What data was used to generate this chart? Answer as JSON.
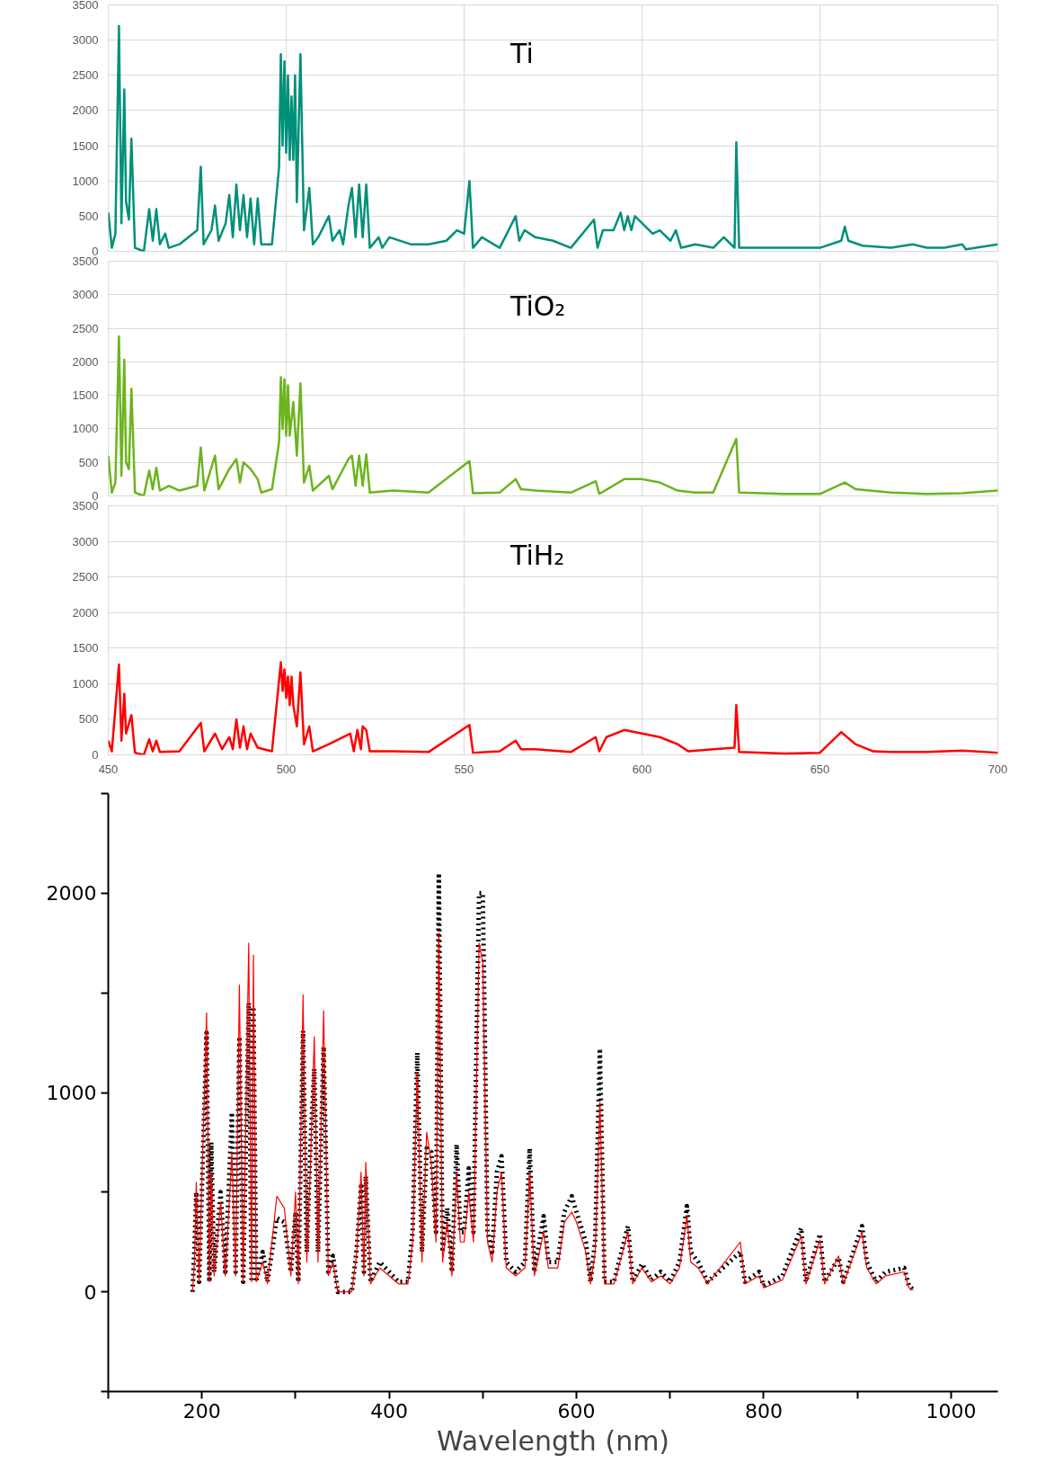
{
  "chart_data": [
    {
      "type": "line",
      "title": "Ti",
      "xlim": [
        450,
        700
      ],
      "xticks": [
        450,
        500,
        550,
        600,
        650,
        700
      ],
      "ylim": [
        0,
        3500
      ],
      "yticks": [
        0,
        500,
        1000,
        1500,
        2000,
        2500,
        3000,
        3500
      ],
      "grid": true,
      "tick_labels": "y",
      "line_style": "solid",
      "series": [
        {
          "color": "#00907a",
          "x": [
            450,
            451,
            452,
            453,
            453.7,
            454.5,
            455,
            455.8,
            456.5,
            457.5,
            460,
            461.5,
            462.5,
            463.5,
            464.5,
            466,
            467,
            470,
            475,
            476,
            476.8,
            479,
            480,
            481,
            483,
            484,
            485,
            486,
            487,
            488,
            489,
            490,
            491,
            492,
            493,
            496,
            498,
            498.5,
            499,
            499.5,
            500,
            500.5,
            501,
            501.5,
            502,
            502.5,
            503,
            504,
            505,
            506.5,
            507.5,
            509,
            512,
            513,
            515,
            516,
            517.5,
            518.5,
            519.5,
            520.5,
            521.5,
            522.5,
            523.5,
            526,
            527,
            529,
            535,
            540,
            545,
            548,
            550,
            551.5,
            552.5,
            555,
            560,
            564.5,
            565.5,
            567,
            570,
            575,
            580,
            586.5,
            587.5,
            589,
            592,
            594,
            595,
            596,
            597,
            598,
            600,
            603,
            605,
            608,
            609.5,
            611,
            615,
            620,
            623,
            624,
            626,
            626.5,
            627.3,
            630,
            640,
            650,
            656,
            657,
            658,
            662,
            670,
            676,
            680,
            685,
            690,
            691,
            700
          ],
          "values": [
            550,
            50,
            250,
            3200,
            400,
            2300,
            700,
            450,
            1600,
            50,
            0,
            600,
            150,
            600,
            100,
            250,
            50,
            100,
            300,
            1200,
            100,
            300,
            650,
            150,
            400,
            800,
            200,
            950,
            300,
            800,
            200,
            750,
            100,
            750,
            100,
            100,
            1200,
            2800,
            1500,
            2700,
            1400,
            2500,
            1300,
            2200,
            1300,
            2500,
            700,
            2800,
            300,
            900,
            100,
            200,
            500,
            150,
            300,
            100,
            650,
            900,
            200,
            950,
            200,
            950,
            50,
            200,
            50,
            200,
            100,
            100,
            150,
            300,
            250,
            1000,
            50,
            200,
            50,
            500,
            150,
            300,
            200,
            150,
            50,
            450,
            50,
            300,
            300,
            550,
            300,
            500,
            300,
            500,
            400,
            250,
            300,
            150,
            300,
            50,
            100,
            50,
            200,
            150,
            50,
            1550,
            50,
            50,
            50,
            50,
            150,
            350,
            150,
            80,
            50,
            100,
            50,
            50,
            100,
            30,
            100
          ]
        }
      ]
    },
    {
      "type": "line",
      "title": "TiO₂",
      "xlim": [
        450,
        700
      ],
      "xticks": [
        450,
        500,
        550,
        600,
        650,
        700
      ],
      "ylim": [
        0,
        3500
      ],
      "yticks": [
        0,
        500,
        1000,
        1500,
        2000,
        2500,
        3000,
        3500
      ],
      "grid": true,
      "tick_labels": "y",
      "line_style": "solid",
      "series": [
        {
          "color": "#6cb41e",
          "x": [
            450,
            451,
            452,
            453,
            453.7,
            454.5,
            455,
            455.8,
            456.5,
            457.5,
            460,
            461.5,
            462.5,
            463.5,
            464.5,
            467,
            470,
            475,
            476,
            477,
            480,
            481,
            484,
            486,
            487,
            488,
            490,
            492,
            493,
            496,
            498,
            498.5,
            499,
            499.5,
            500,
            500.5,
            501,
            502,
            503,
            504,
            505,
            506.5,
            507.5,
            512,
            513,
            517.5,
            518.5,
            519.5,
            520.5,
            521.5,
            522.5,
            523.5,
            530,
            540,
            551.5,
            552.5,
            560,
            564.5,
            566,
            570,
            580,
            587,
            588,
            595,
            600,
            605,
            610,
            615,
            620,
            626.5,
            627.3,
            640,
            650,
            657,
            660,
            670,
            680,
            690,
            700
          ],
          "values": [
            600,
            50,
            200,
            2380,
            300,
            2030,
            500,
            400,
            1600,
            50,
            0,
            380,
            100,
            420,
            80,
            150,
            80,
            150,
            720,
            80,
            600,
            100,
            400,
            550,
            200,
            500,
            400,
            250,
            50,
            100,
            800,
            1770,
            1000,
            1740,
            900,
            1650,
            900,
            1400,
            600,
            1680,
            200,
            450,
            80,
            300,
            100,
            550,
            600,
            150,
            600,
            150,
            620,
            50,
            80,
            50,
            520,
            40,
            50,
            250,
            100,
            80,
            50,
            220,
            30,
            250,
            250,
            200,
            80,
            50,
            50,
            850,
            50,
            30,
            30,
            200,
            100,
            50,
            30,
            40,
            80
          ]
        }
      ]
    },
    {
      "type": "line",
      "title": "TiH₂",
      "xlim": [
        450,
        700
      ],
      "xticks": [
        450,
        500,
        550,
        600,
        650,
        700
      ],
      "ylim": [
        0,
        3500
      ],
      "yticks": [
        0,
        500,
        1000,
        1500,
        2000,
        2500,
        3000,
        3500
      ],
      "grid": true,
      "line_style": "solid",
      "series": [
        {
          "color": "#ff0000",
          "x": [
            450,
            451,
            453,
            453.7,
            454.5,
            455,
            456.5,
            457.5,
            460,
            461.5,
            462.5,
            463.5,
            464.5,
            470,
            476,
            477,
            480,
            482,
            484,
            485,
            486,
            487,
            488,
            489,
            490,
            492,
            496,
            498.5,
            499,
            499.5,
            500,
            500.5,
            501,
            501.5,
            502,
            503,
            504,
            505,
            506.5,
            507.5,
            512,
            518,
            519,
            520,
            521,
            521.5,
            522.5,
            523.5,
            530,
            540,
            551.5,
            552.5,
            560,
            564.5,
            566,
            570,
            580,
            587,
            588,
            590,
            595,
            600,
            605,
            610,
            613,
            620,
            626,
            626.5,
            627.3,
            640,
            650,
            656,
            660,
            665,
            670,
            680,
            690,
            700
          ],
          "values": [
            200,
            50,
            1270,
            200,
            860,
            300,
            560,
            30,
            0,
            220,
            50,
            200,
            40,
            50,
            450,
            50,
            300,
            80,
            250,
            80,
            500,
            100,
            400,
            80,
            300,
            100,
            50,
            1300,
            900,
            1200,
            800,
            1100,
            700,
            1100,
            700,
            400,
            1160,
            150,
            400,
            50,
            150,
            300,
            50,
            350,
            80,
            400,
            350,
            50,
            50,
            40,
            420,
            30,
            50,
            200,
            80,
            80,
            40,
            250,
            50,
            250,
            350,
            300,
            250,
            150,
            50,
            80,
            100,
            700,
            40,
            20,
            30,
            320,
            150,
            50,
            40,
            40,
            60,
            30
          ]
        }
      ]
    },
    {
      "type": "line",
      "xlabel": "Wavelength (nm)",
      "xlim": [
        100,
        1050
      ],
      "xticks": [
        {
          "value": 100,
          "label": null
        },
        200,
        {
          "value": 300,
          "label": null
        },
        400,
        {
          "value": 500,
          "label": null
        },
        600,
        {
          "value": 700,
          "label": null
        },
        800,
        {
          "value": 900,
          "label": null
        },
        1000
      ],
      "ylim": [
        -500,
        2500
      ],
      "yticks": [
        {
          "value": -500,
          "label": null
        },
        0,
        {
          "value": 500,
          "label": null
        },
        1000,
        {
          "value": 1500,
          "label": null
        },
        2000,
        {
          "value": 2500,
          "label": null
        }
      ],
      "grid": false,
      "series": [
        {
          "color": "#000000",
          "line_style": "dotted",
          "x": [
            190,
            192,
            194,
            197,
            205,
            208,
            210,
            213,
            220,
            225,
            232,
            236,
            240,
            244,
            250,
            253,
            255,
            258,
            265,
            270,
            280,
            288,
            295,
            300,
            303,
            308,
            312,
            316,
            320,
            324,
            330,
            335,
            340,
            345,
            360,
            365,
            370,
            373,
            375,
            380,
            390,
            400,
            410,
            420,
            425,
            430,
            435,
            440,
            445,
            450,
            453,
            457,
            462,
            467,
            472,
            476,
            480,
            485,
            490,
            496,
            500,
            505,
            510,
            515,
            520,
            525,
            535,
            545,
            550,
            555,
            565,
            570,
            580,
            587,
            595,
            600,
            610,
            615,
            620,
            625,
            630,
            640,
            655,
            660,
            670,
            680,
            690,
            700,
            710,
            718,
            722,
            730,
            740,
            775,
            780,
            795,
            800,
            820,
            840,
            845,
            860,
            865,
            880,
            885,
            905,
            910,
            920,
            930,
            950,
            955,
            960
          ],
          "values": [
            0,
            220,
            500,
            50,
            1300,
            50,
            750,
            100,
            500,
            100,
            900,
            100,
            1280,
            50,
            1450,
            50,
            1430,
            50,
            200,
            50,
            370,
            350,
            100,
            400,
            50,
            1310,
            200,
            750,
            1120,
            200,
            1230,
            100,
            180,
            0,
            0,
            200,
            530,
            100,
            580,
            50,
            150,
            100,
            50,
            50,
            300,
            1200,
            200,
            720,
            700,
            300,
            2100,
            200,
            420,
            100,
            740,
            300,
            300,
            620,
            300,
            2000,
            2000,
            300,
            200,
            600,
            680,
            150,
            100,
            150,
            720,
            100,
            380,
            150,
            150,
            400,
            480,
            400,
            250,
            50,
            260,
            1220,
            50,
            50,
            330,
            50,
            140,
            60,
            100,
            50,
            150,
            430,
            200,
            150,
            50,
            200,
            50,
            100,
            30,
            80,
            320,
            50,
            290,
            50,
            170,
            50,
            330,
            150,
            50,
            100,
            120,
            30,
            10
          ]
        },
        {
          "color": "#ff0000",
          "line_style": "solid",
          "x": [
            190,
            192,
            194,
            197,
            205,
            208,
            210,
            213,
            220,
            225,
            232,
            236,
            240,
            244,
            250,
            253,
            255,
            258,
            265,
            270,
            280,
            288,
            295,
            300,
            303,
            308,
            312,
            316,
            320,
            324,
            330,
            335,
            340,
            345,
            360,
            365,
            370,
            373,
            375,
            380,
            390,
            400,
            410,
            420,
            425,
            430,
            435,
            440,
            445,
            450,
            453,
            457,
            462,
            467,
            472,
            476,
            480,
            485,
            490,
            496,
            500,
            505,
            510,
            515,
            520,
            525,
            535,
            545,
            550,
            555,
            565,
            570,
            580,
            587,
            595,
            600,
            610,
            615,
            620,
            625,
            630,
            640,
            655,
            660,
            670,
            680,
            690,
            700,
            710,
            718,
            722,
            730,
            740,
            775,
            780,
            795,
            800,
            820,
            840,
            845,
            860,
            865,
            880,
            885,
            905,
            910,
            920,
            930,
            950,
            955,
            960
          ],
          "values": [
            0,
            150,
            550,
            50,
            1400,
            50,
            600,
            80,
            450,
            80,
            700,
            80,
            1540,
            50,
            1750,
            50,
            1690,
            50,
            150,
            40,
            480,
            420,
            80,
            500,
            40,
            1490,
            150,
            650,
            1280,
            150,
            1410,
            80,
            150,
            0,
            0,
            180,
            600,
            80,
            650,
            40,
            120,
            80,
            40,
            40,
            250,
            1100,
            150,
            800,
            650,
            250,
            1800,
            150,
            350,
            80,
            600,
            250,
            250,
            500,
            250,
            1750,
            1650,
            250,
            150,
            500,
            600,
            120,
            80,
            120,
            600,
            80,
            300,
            120,
            120,
            350,
            400,
            350,
            200,
            40,
            200,
            950,
            40,
            40,
            300,
            40,
            120,
            50,
            80,
            40,
            120,
            380,
            150,
            120,
            40,
            250,
            40,
            80,
            20,
            60,
            280,
            40,
            260,
            40,
            180,
            40,
            300,
            120,
            40,
            80,
            100,
            20,
            10
          ]
        }
      ]
    }
  ]
}
